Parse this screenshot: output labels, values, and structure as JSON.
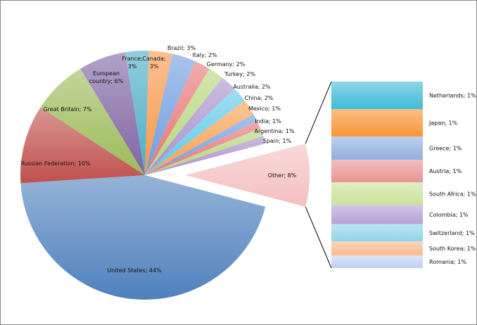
{
  "chart_data": {
    "type": "pie-of-bar",
    "title": "",
    "pie": {
      "categories": [
        "United States",
        "Russian Federation",
        "Great Britain",
        "European country",
        "France",
        "Canada",
        "Brazil",
        "Italy",
        "Germany",
        "Turkey",
        "Australia",
        "China",
        "Mexico",
        "India",
        "Argentina",
        "Spain",
        "Other"
      ],
      "values": [
        44,
        10,
        7,
        6,
        3,
        3,
        3,
        2,
        2,
        2,
        2,
        2,
        1,
        1,
        1,
        1,
        8
      ],
      "labels": [
        "United States; 44%",
        "Russian Federation; 10%",
        "Great Britain; 7%",
        "European country; 6%",
        "France; 3%",
        "Canada; 3%",
        "Brazil; 3%",
        "Italy; 2%",
        "Germany; 2%",
        "Turkey; 2%",
        "Australia; 2%",
        "China; 2%",
        "Mexico; 1%",
        "India; 1%",
        "Argentina; 1%",
        "Spain; 1%",
        "Other; 8%"
      ],
      "colors": [
        "#4f81bd",
        "#c0504d",
        "#9bbb59",
        "#8064a2",
        "#4bacc6",
        "#f79646",
        "#6f9be0",
        "#e87474",
        "#b5d77a",
        "#a890cc",
        "#5fc8e8",
        "#f9a050",
        "#6f9be0",
        "#e87474",
        "#b5d77a",
        "#a890cc",
        "#f4c0c0"
      ]
    },
    "bar": {
      "categories": [
        "Netherlands",
        "Japan",
        "Greece",
        "Austria",
        "South Africa",
        "Colombia",
        "Switzerland",
        "South Korea",
        "Romania"
      ],
      "values": [
        1.18,
        1.18,
        1.0,
        0.97,
        0.97,
        0.82,
        0.75,
        0.6,
        0.54
      ],
      "labels": [
        "Netherlands; 1%",
        "Japan; 1%",
        "Greece; 1%",
        "Austria; 1%",
        "South Africa; 1%",
        "Colombia; 1%",
        "Switzerland; 1%",
        "South Korea; 1%",
        "Romania; 1%"
      ],
      "colors": [
        "#3fbcd8",
        "#f99536",
        "#92afe0",
        "#e99393",
        "#c9e29a",
        "#b7a0d6",
        "#8fd5e8",
        "#fdb98a",
        "#c2d2f0"
      ]
    }
  }
}
